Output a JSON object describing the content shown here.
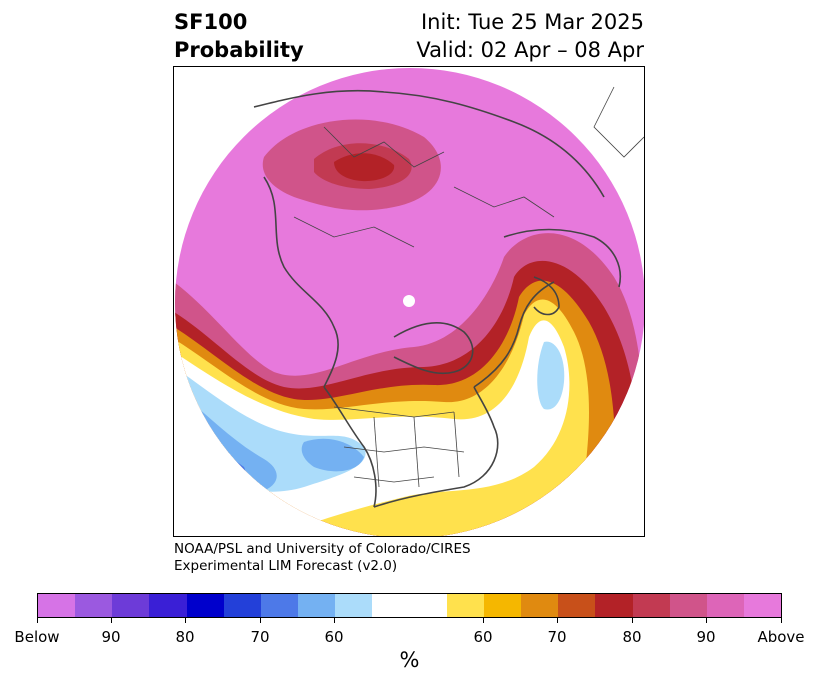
{
  "header": {
    "title_line1": "SF100",
    "title_line2": "Probability",
    "init_text": "Init: Tue 25 Mar 2025",
    "valid_text": "Valid: 02 Apr – 08 Apr"
  },
  "credit": {
    "line1": "NOAA/PSL and University of Colorado/CIRES",
    "line2": "Experimental LIM Forecast (v2.0)"
  },
  "colorbar": {
    "colors": [
      "#d673e6",
      "#9b59e0",
      "#6d3bd8",
      "#3a1fd6",
      "#0000cc",
      "#2340d9",
      "#4d79e8",
      "#74b1f2",
      "#abdcfa",
      "#ffffff",
      "#ffffff",
      "#ffe14d",
      "#f5b700",
      "#e08a10",
      "#c8501a",
      "#b32227",
      "#c23a52",
      "#d0548a",
      "#dd65b8",
      "#e779dc"
    ],
    "tick_labels": [
      "Below",
      "90",
      "80",
      "70",
      "60",
      "60",
      "70",
      "80",
      "90",
      "Above"
    ],
    "unit": "%"
  },
  "map": {
    "projection": "north-polar-stereographic",
    "colors": {
      "above_max": "#e779dc",
      "above_90": "#d0548a",
      "above_80": "#b32227",
      "above_70": "#e08a10",
      "above_60": "#ffe14d",
      "neutral": "#ffffff",
      "below_60": "#abdcfa",
      "below_70": "#74b1f2",
      "below_80": "#4d79e8",
      "below_90": "#2340d9",
      "coastline": "#444444"
    }
  }
}
